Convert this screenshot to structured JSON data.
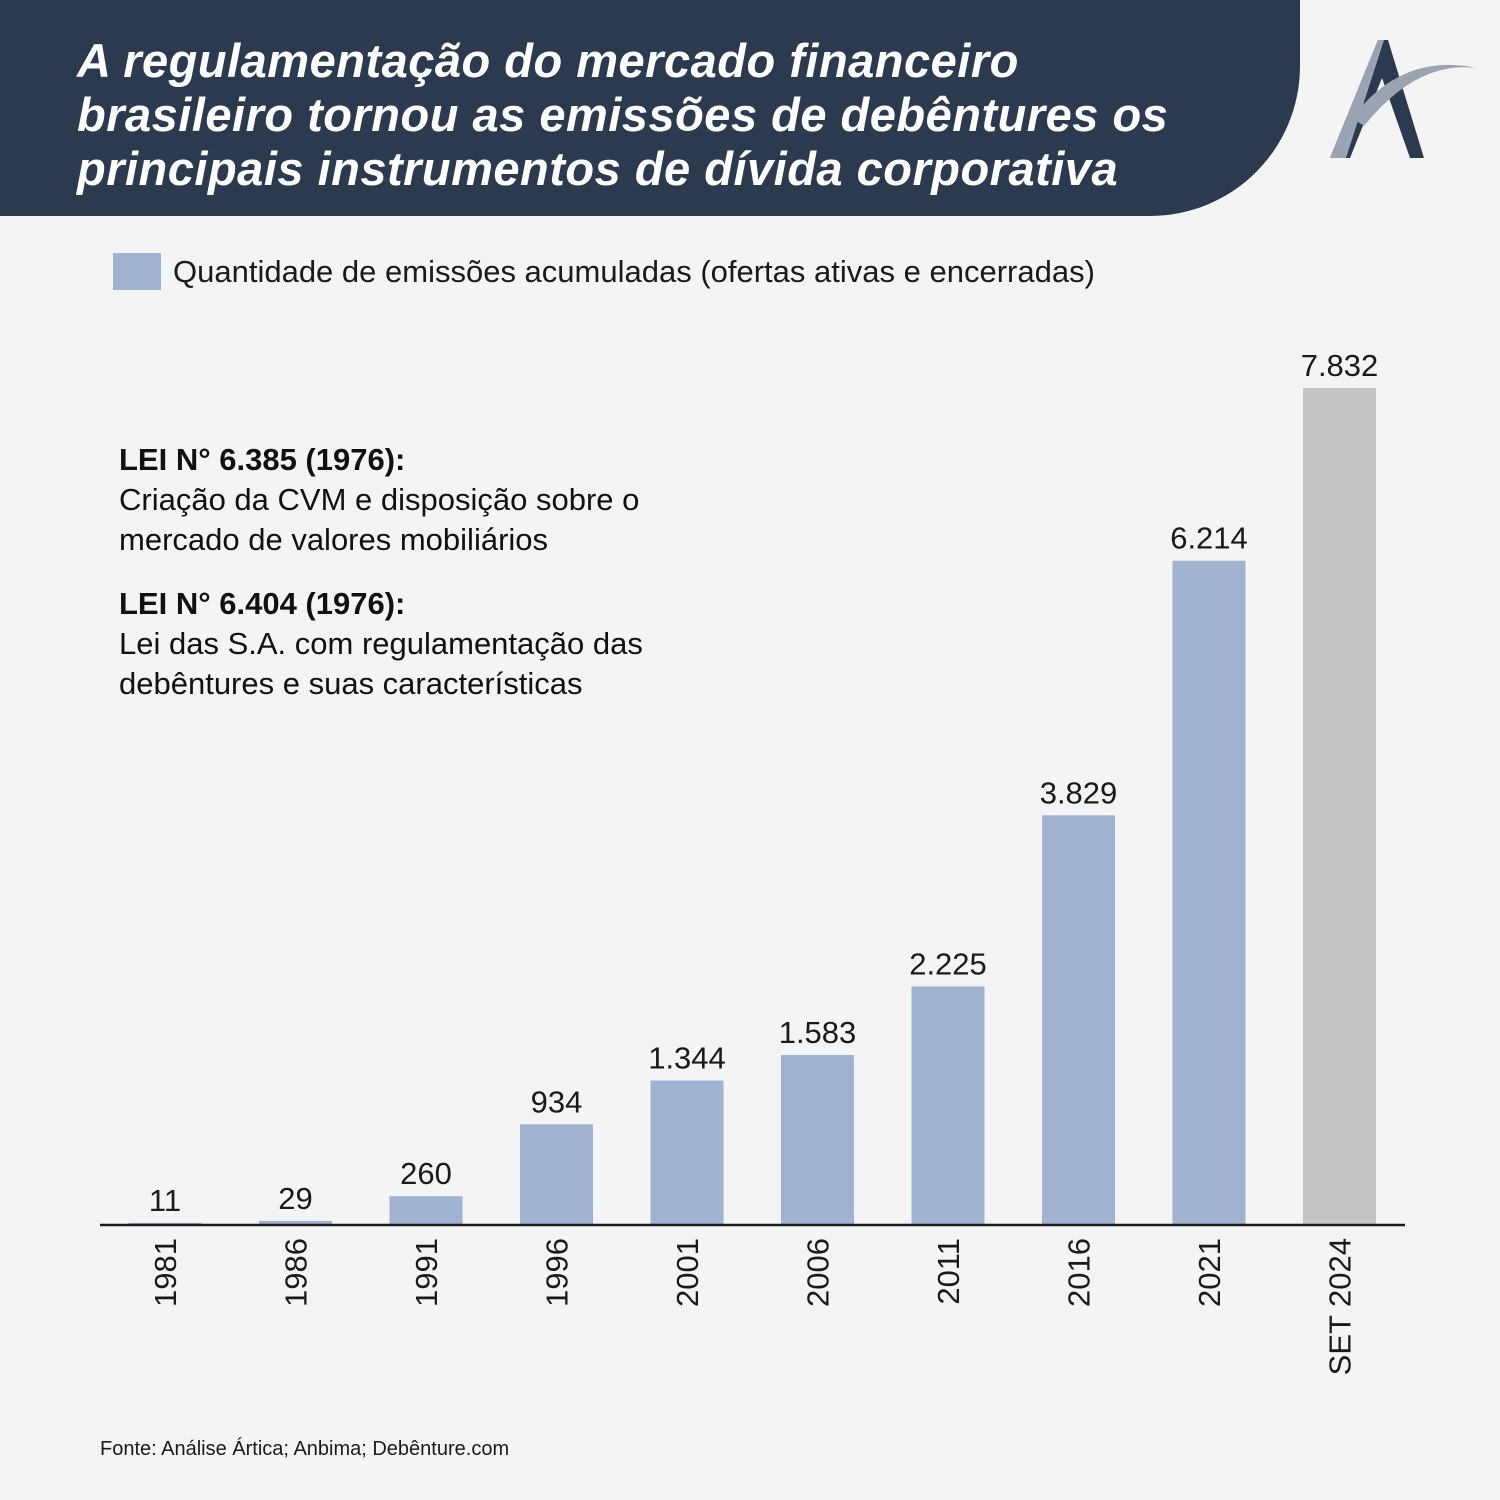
{
  "header": {
    "title": "A regulamentação do mercado financeiro\nbrasileiro tornou as emissões de debêntures os\nprincipais instrumentos de dívida corporativa"
  },
  "logo": {
    "icon": "arctic-a-logo",
    "colors": [
      "#2c3a50",
      "#9aa3b2"
    ]
  },
  "legend": {
    "label": "Quantidade de emissões acumuladas (ofertas ativas e encerradas)",
    "color": "#9fb2cf"
  },
  "notes": [
    {
      "title": "LEI N° 6.385 (1976):",
      "body": "Criação da CVM e disposição sobre o\nmercado de valores mobiliários"
    },
    {
      "title": "LEI N° 6.404 (1976):",
      "body": "Lei das S.A. com regulamentação das\ndebêntures e suas características"
    }
  ],
  "chart_data": {
    "type": "bar",
    "categories": [
      "1981",
      "1986",
      "1991",
      "1996",
      "2001",
      "2006",
      "2011",
      "2016",
      "2021",
      "SET 2024"
    ],
    "series": [
      {
        "name": "Quantidade de emissões acumuladas (ofertas ativas e encerradas)",
        "values": [
          11,
          29,
          260,
          934,
          1344,
          1583,
          2225,
          3829,
          6214,
          7832
        ]
      }
    ],
    "data_labels": [
      "11",
      "29",
      "260",
      "934",
      "1.344",
      "1.583",
      "2.225",
      "3.829",
      "6.214",
      "7.832"
    ],
    "colors": {
      "default": "#9fb2cf",
      "highlight": "#c4c4c4",
      "highlight_category": "SET 2024"
    },
    "ylim": [
      0,
      7832
    ],
    "legend_position": "top-left",
    "grid": false
  },
  "source": "Fonte: Análise Ártica; Anbima; Debênture.com"
}
